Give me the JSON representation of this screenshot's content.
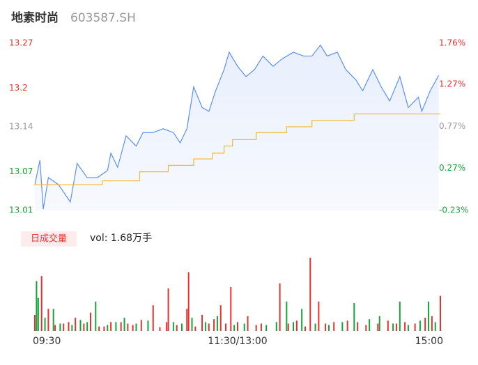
{
  "header": {
    "name": "地素时尚",
    "code": "603587.SH"
  },
  "chart_data": [
    {
      "type": "line",
      "xlim": [
        0,
        240
      ],
      "ylim": [
        13.01,
        13.27
      ],
      "yticks": [
        13.27,
        13.2,
        13.14,
        13.07,
        13.01
      ],
      "y2lim": [
        -0.23,
        1.76
      ],
      "y2ticks": [
        {
          "value": 1.76,
          "label": "1.76%"
        },
        {
          "value": 1.27,
          "label": "1.27%"
        },
        {
          "value": 0.77,
          "label": "0.77%"
        },
        {
          "value": 0.27,
          "label": "0.27%"
        },
        {
          "value": -0.23,
          "label": "-0.23%"
        }
      ],
      "up_color": "#e8312f",
      "flat_color": "#999999",
      "down_color": "#13a538",
      "series": [
        {
          "name": "price",
          "color": "#5b8ff9",
          "x": [
            0,
            3,
            5,
            8,
            14,
            21,
            25,
            31,
            37,
            43,
            45,
            49,
            54,
            60,
            64,
            70,
            76,
            82,
            86,
            90,
            94,
            99,
            103,
            107,
            112,
            115,
            120,
            125,
            130,
            135,
            141,
            146,
            153,
            159,
            164,
            169,
            173,
            179,
            184,
            190,
            194,
            200,
            205,
            210,
            216,
            221,
            227,
            229,
            234,
            239
          ],
          "values": [
            13.05,
            13.088,
            13.012,
            13.061,
            13.05,
            13.023,
            13.083,
            13.061,
            13.061,
            13.072,
            13.099,
            13.077,
            13.126,
            13.11,
            13.131,
            13.131,
            13.137,
            13.131,
            13.115,
            13.137,
            13.202,
            13.17,
            13.164,
            13.196,
            13.229,
            13.256,
            13.234,
            13.218,
            13.229,
            13.25,
            13.234,
            13.245,
            13.256,
            13.25,
            13.25,
            13.267,
            13.25,
            13.256,
            13.229,
            13.213,
            13.196,
            13.229,
            13.202,
            13.18,
            13.218,
            13.17,
            13.186,
            13.164,
            13.196,
            13.22
          ]
        },
        {
          "name": "average",
          "color": "#f5b935",
          "x": [
            0,
            40,
            40,
            62,
            62,
            79,
            79,
            94,
            94,
            105,
            105,
            112,
            112,
            117,
            117,
            131,
            131,
            149,
            149,
            164,
            164,
            189,
            189,
            240
          ],
          "values": [
            13.05,
            13.05,
            13.056,
            13.056,
            13.07,
            13.07,
            13.08,
            13.08,
            13.09,
            13.09,
            13.099,
            13.099,
            13.11,
            13.11,
            13.12,
            13.12,
            13.131,
            13.131,
            13.14,
            13.14,
            13.15,
            13.15,
            13.16,
            13.16
          ]
        }
      ]
    },
    {
      "type": "bar",
      "title": "日成交量",
      "subtitle": "vol: 1.68万手",
      "xlim": [
        0,
        240
      ],
      "ylim": [
        0,
        100
      ],
      "xticks": [
        {
          "value": 0,
          "label": "09:30"
        },
        {
          "value": 120,
          "label": "11:30/13:00"
        },
        {
          "value": 240,
          "label": "15:00"
        }
      ],
      "series": [
        {
          "name": "up",
          "color": "#e8312f",
          "x": [
            0,
            4,
            8,
            12,
            17,
            20,
            24,
            29,
            33,
            38,
            41,
            45,
            51,
            55,
            58,
            63,
            70,
            74,
            78,
            79,
            84,
            90,
            91,
            95,
            99,
            103,
            106,
            110,
            113,
            116,
            120,
            126,
            131,
            134,
            145,
            150,
            155,
            160,
            163,
            168,
            172,
            177,
            185,
            191,
            196,
            203,
            209,
            214,
            219,
            225,
            231,
            235,
            240
          ],
          "values": [
            22,
            75,
            30,
            8,
            10,
            12,
            18,
            10,
            25,
            6,
            6,
            12,
            12,
            10,
            8,
            15,
            35,
            5,
            12,
            58,
            8,
            30,
            80,
            6,
            22,
            10,
            16,
            35,
            10,
            60,
            12,
            20,
            8,
            10,
            65,
            10,
            14,
            6,
            100,
            40,
            10,
            12,
            14,
            12,
            8,
            10,
            14,
            10,
            12,
            10,
            18,
            20,
            48
          ]
        },
        {
          "name": "down",
          "color": "#13a538",
          "x": [
            1,
            2,
            6,
            11,
            15,
            22,
            27,
            31,
            36,
            43,
            48,
            53,
            60,
            67,
            82,
            87,
            93,
            101,
            108,
            118,
            124,
            137,
            143,
            149,
            153,
            158,
            166,
            174,
            182,
            189,
            198,
            204,
            212,
            216,
            221,
            228,
            233,
            237
          ],
          "values": [
            68,
            45,
            18,
            30,
            10,
            8,
            15,
            12,
            40,
            8,
            12,
            18,
            10,
            14,
            12,
            10,
            18,
            12,
            20,
            8,
            10,
            8,
            12,
            40,
            12,
            30,
            10,
            8,
            12,
            38,
            16,
            20,
            10,
            40,
            8,
            14,
            40,
            12
          ]
        }
      ]
    }
  ]
}
